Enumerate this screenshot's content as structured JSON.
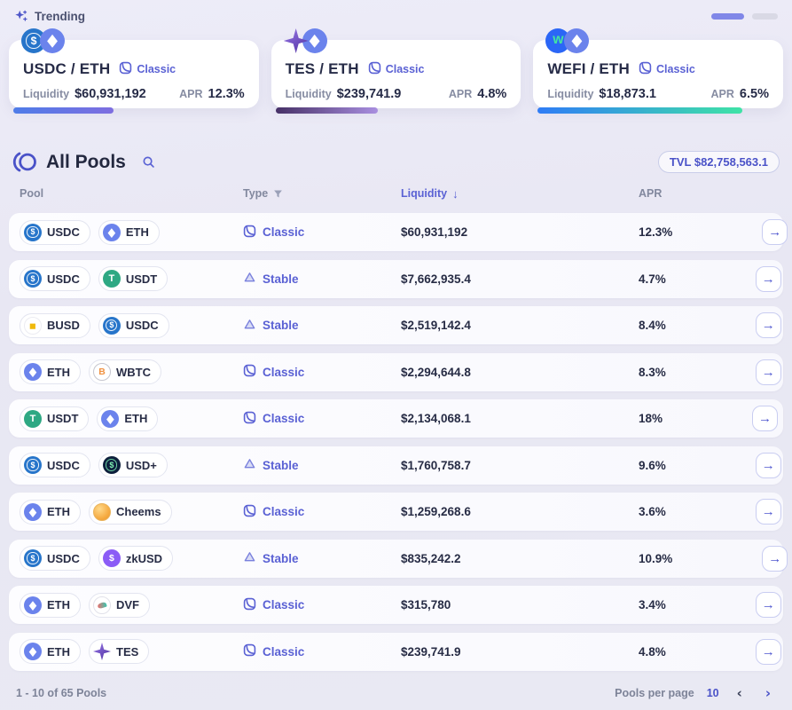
{
  "trending": {
    "label": "Trending",
    "carousel_pages": 2,
    "labels": {
      "liquidity": "Liquidity",
      "apr": "APR"
    },
    "cards": [
      {
        "pair": "USDC / ETH",
        "type_label": "Classic",
        "tokens": [
          "USDC",
          "ETH"
        ],
        "liquidity": "$60,931,192",
        "apr": "12.3%",
        "bar": {
          "from": "#4e7ce8",
          "to": "#7e6ee0",
          "width": "40%"
        }
      },
      {
        "pair": "TES / ETH",
        "type_label": "Classic",
        "tokens": [
          "TES",
          "ETH"
        ],
        "liquidity": "$239,741.9",
        "apr": "4.8%",
        "bar": {
          "from": "#463066",
          "to": "#a98fe0",
          "width": "41%"
        }
      },
      {
        "pair": "WEFI / ETH",
        "type_label": "Classic",
        "tokens": [
          "WEFI",
          "ETH"
        ],
        "liquidity": "$18,873.1",
        "apr": "6.5%",
        "bar": {
          "from": "#2f7cf6",
          "to": "#3fe3a6",
          "width": "82%"
        }
      }
    ]
  },
  "all_pools": {
    "title": "All Pools",
    "tvl_badge": "TVL $82,758,563.1",
    "columns": {
      "pool": "Pool",
      "type": "Type",
      "liquidity": "Liquidity",
      "apr": "APR"
    },
    "rows": [
      {
        "token1": "USDC",
        "token2": "ETH",
        "type": "Classic",
        "liquidity": "$60,931,192",
        "apr": "12.3%"
      },
      {
        "token1": "USDC",
        "token2": "USDT",
        "type": "Stable",
        "liquidity": "$7,662,935.4",
        "apr": "4.7%"
      },
      {
        "token1": "BUSD",
        "token2": "USDC",
        "type": "Stable",
        "liquidity": "$2,519,142.4",
        "apr": "8.4%"
      },
      {
        "token1": "ETH",
        "token2": "WBTC",
        "type": "Classic",
        "liquidity": "$2,294,644.8",
        "apr": "8.3%"
      },
      {
        "token1": "USDT",
        "token2": "ETH",
        "type": "Classic",
        "liquidity": "$2,134,068.1",
        "apr": "18%"
      },
      {
        "token1": "USDC",
        "token2": "USD+",
        "type": "Stable",
        "liquidity": "$1,760,758.7",
        "apr": "9.6%"
      },
      {
        "token1": "ETH",
        "token2": "Cheems",
        "type": "Classic",
        "liquidity": "$1,259,268.6",
        "apr": "3.6%"
      },
      {
        "token1": "USDC",
        "token2": "zkUSD",
        "type": "Stable",
        "liquidity": "$835,242.2",
        "apr": "10.9%"
      },
      {
        "token1": "ETH",
        "token2": "DVF",
        "type": "Classic",
        "liquidity": "$315,780",
        "apr": "3.4%"
      },
      {
        "token1": "ETH",
        "token2": "TES",
        "type": "Classic",
        "liquidity": "$239,741.9",
        "apr": "4.8%"
      }
    ]
  },
  "footer": {
    "range": "1 - 10 of 65 Pools",
    "per_page_label": "Pools per page",
    "per_page_value": "10"
  },
  "token_icons": {
    "USDC": "usdc-icon",
    "ETH": "eth-icon",
    "USDT": "usdt-icon",
    "BUSD": "busd-icon",
    "WBTC": "wbtc-icon",
    "USD+": "usdplus-icon",
    "Cheems": "cheems-icon",
    "zkUSD": "zkusd-icon",
    "DVF": "dvf-icon",
    "TES": "tes-icon",
    "WEFI": "wefi-icon"
  },
  "icons": {
    "trending": "sparkles-icon",
    "logo": "pools-logo-icon",
    "search": "search-icon",
    "filter": "filter-icon",
    "sort": "sort-descending-icon",
    "classic": "classic-type-icon",
    "stable": "stable-type-icon",
    "row_action": "arrow-right-icon",
    "prev": "chevron-left-icon",
    "next": "chevron-right-icon"
  },
  "colors": {
    "accent": "#4d55cc",
    "type_text": "#5a61d4",
    "background": "#e9e8f4"
  }
}
